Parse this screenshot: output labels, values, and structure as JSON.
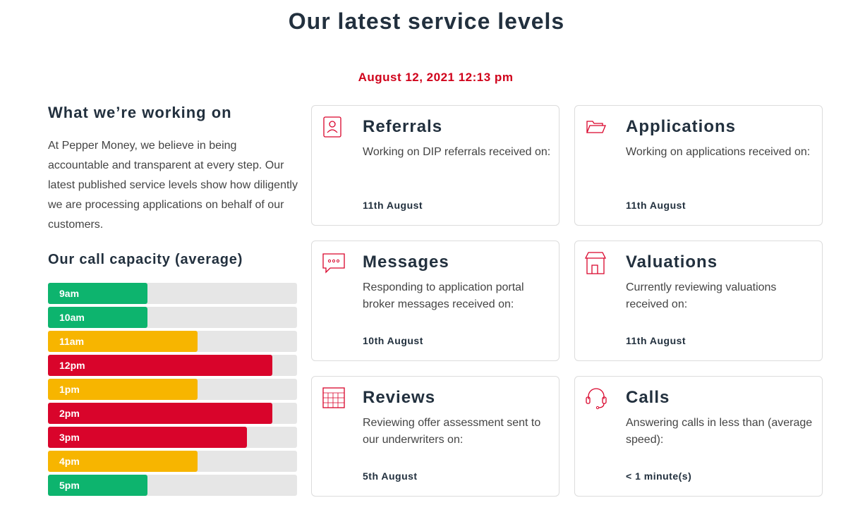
{
  "header": {
    "title": "Our latest service levels",
    "timestamp": "August 12, 2021 12:13 pm"
  },
  "intro": {
    "heading": "What we’re working on",
    "text": "At Pepper Money, we believe in being accountable and transparent at every step. Our latest published service levels show how diligently we are processing applications on behalf of our customers."
  },
  "chart_data": {
    "type": "bar",
    "title": "Our call capacity (average)",
    "categories": [
      "9am",
      "10am",
      "11am",
      "12pm",
      "1pm",
      "2pm",
      "3pm",
      "4pm",
      "5pm"
    ],
    "values": [
      40,
      40,
      60,
      90,
      60,
      90,
      80,
      60,
      40
    ],
    "colors": [
      "#0db46e",
      "#0db46e",
      "#f7b500",
      "#d9042b",
      "#f7b500",
      "#d9042b",
      "#d9042b",
      "#f7b500",
      "#0db46e"
    ],
    "xlim": [
      0,
      100
    ]
  },
  "cards": [
    {
      "title": "Referrals",
      "description": "Working on DIP referrals received on:",
      "status": "11th August"
    },
    {
      "title": "Applications",
      "description": "Working on applications received on:",
      "status": "11th August"
    },
    {
      "title": "Messages",
      "description": "Responding to application portal broker messages received on:",
      "status": "10th August"
    },
    {
      "title": "Valuations",
      "description": "Currently reviewing valuations received on:",
      "status": "11th August"
    },
    {
      "title": "Reviews",
      "description": "Reviewing offer assessment sent to our underwriters on:",
      "status": "5th August"
    },
    {
      "title": "Calls",
      "description": "Answering calls in less than (average speed):",
      "status": "< 1 minute(s)"
    }
  ]
}
